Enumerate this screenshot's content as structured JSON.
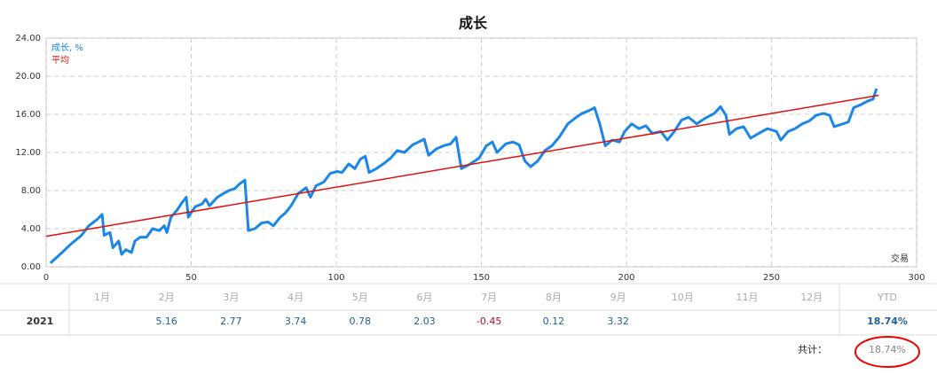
{
  "chart_data": {
    "type": "line",
    "title": "成长",
    "x_label": "交易",
    "xlim": [
      0,
      300
    ],
    "xticks": [
      0,
      50,
      100,
      150,
      200,
      250,
      300
    ],
    "ylim": [
      0,
      24
    ],
    "yticks": [
      {
        "value": 0,
        "label": "0.00"
      },
      {
        "value": 4,
        "label": "4.00"
      },
      {
        "value": 8,
        "label": "8.00"
      },
      {
        "value": 12,
        "label": "12.00"
      },
      {
        "value": 16,
        "label": "16.00"
      },
      {
        "value": 20,
        "label": "20.00"
      },
      {
        "value": 24,
        "label": "24.00"
      }
    ],
    "grid": true,
    "legend": "upper left",
    "series": [
      {
        "name": "成长, %",
        "color": "#1a86e8",
        "x": [
          1.5,
          5.5,
          8.6,
          12.2,
          14.7,
          17.7,
          19.3,
          20,
          22,
          23,
          25,
          26,
          27.5,
          29.4,
          30.6,
          32.4,
          34.6,
          36.7,
          39,
          40.7,
          41.6,
          43,
          45,
          47,
          48.3,
          49,
          50,
          51.4,
          53.8,
          55,
          56.3,
          59,
          61.2,
          63,
          65,
          66.7,
          68.5,
          69.7,
          71.9,
          74.3,
          76.5,
          78.3,
          80.7,
          82.6,
          84.4,
          86.9,
          89.6,
          91.1,
          93,
          95.7,
          97.9,
          100.3,
          102,
          104.3,
          106.4,
          108.3,
          110,
          111.3,
          113.8,
          116.2,
          118.7,
          121,
          123.5,
          126.3,
          128.4,
          130.3,
          131.8,
          134.6,
          137,
          139.4,
          141.3,
          143.1,
          146.2,
          149.2,
          151.7,
          153.8,
          155.4,
          158.4,
          160.9,
          163,
          165,
          167,
          169.4,
          171.9,
          174.3,
          176.8,
          179.8,
          182.3,
          184.7,
          187.2,
          189,
          190.8,
          192.7,
          195.1,
          197.6,
          199.4,
          201.8,
          204.3,
          206.7,
          208.9,
          211.9,
          214.1,
          216.5,
          219,
          221.4,
          224.2,
          227.2,
          230.3,
          232.4,
          234.3,
          235.5,
          237.9,
          240.4,
          242.8,
          245.6,
          248.6,
          251.7,
          253.2,
          255.7,
          258.1,
          260.6,
          263,
          265.4,
          267.9,
          270,
          271.6,
          274.6,
          276.5,
          278.3,
          280.7,
          283.2,
          285,
          286.2
        ],
        "values": [
          0.4,
          1.5,
          2.4,
          3.3,
          4.3,
          5.0,
          5.5,
          3.3,
          3.6,
          2.0,
          2.7,
          1.3,
          1.8,
          1.5,
          2.7,
          3.1,
          3.1,
          4.0,
          3.8,
          4.3,
          3.6,
          5.2,
          5.9,
          6.8,
          7.3,
          5.2,
          5.7,
          6.3,
          6.6,
          7.1,
          6.4,
          7.3,
          7.7,
          8.0,
          8.2,
          8.7,
          9.1,
          3.8,
          4.0,
          4.6,
          4.7,
          4.3,
          5.2,
          5.7,
          6.4,
          7.7,
          8.3,
          7.3,
          8.5,
          8.9,
          9.8,
          10.0,
          9.9,
          10.8,
          10.3,
          11.3,
          11.6,
          9.9,
          10.3,
          10.8,
          11.4,
          12.2,
          12.0,
          12.8,
          13.1,
          13.4,
          11.7,
          12.4,
          12.7,
          12.9,
          13.6,
          10.3,
          10.8,
          11.4,
          12.7,
          13.1,
          12.0,
          12.9,
          13.1,
          12.8,
          11.1,
          10.5,
          11.1,
          12.2,
          12.7,
          13.6,
          15.0,
          15.6,
          16.1,
          16.4,
          16.7,
          15.0,
          12.7,
          13.3,
          13.1,
          14.2,
          15.0,
          14.5,
          14.8,
          14.0,
          14.2,
          13.3,
          14.2,
          15.4,
          15.7,
          15.0,
          15.6,
          16.1,
          16.8,
          15.9,
          13.9,
          14.5,
          14.7,
          13.5,
          14.0,
          14.5,
          14.2,
          13.3,
          14.2,
          14.5,
          15.0,
          15.3,
          15.9,
          16.1,
          15.9,
          14.7,
          15.0,
          15.2,
          16.7,
          17.0,
          17.4,
          17.6,
          18.7
        ]
      },
      {
        "name": "平均",
        "color": "#e01010",
        "x": [
          0,
          287
        ],
        "values": [
          3.2,
          18.0
        ]
      }
    ]
  },
  "table": {
    "header": [
      "1月",
      "2月",
      "3月",
      "4月",
      "5月",
      "6月",
      "7月",
      "8月",
      "9月",
      "10月",
      "11月",
      "12月",
      "YTD"
    ],
    "rows": [
      [
        "2021",
        null,
        "5.16",
        "2.77",
        "3.74",
        "0.78",
        "2.03",
        "-0.45",
        "0.12",
        "3.32",
        null,
        null,
        null,
        "18.74%"
      ]
    ]
  },
  "total": {
    "label": "共计：",
    "value": "18.74%"
  }
}
